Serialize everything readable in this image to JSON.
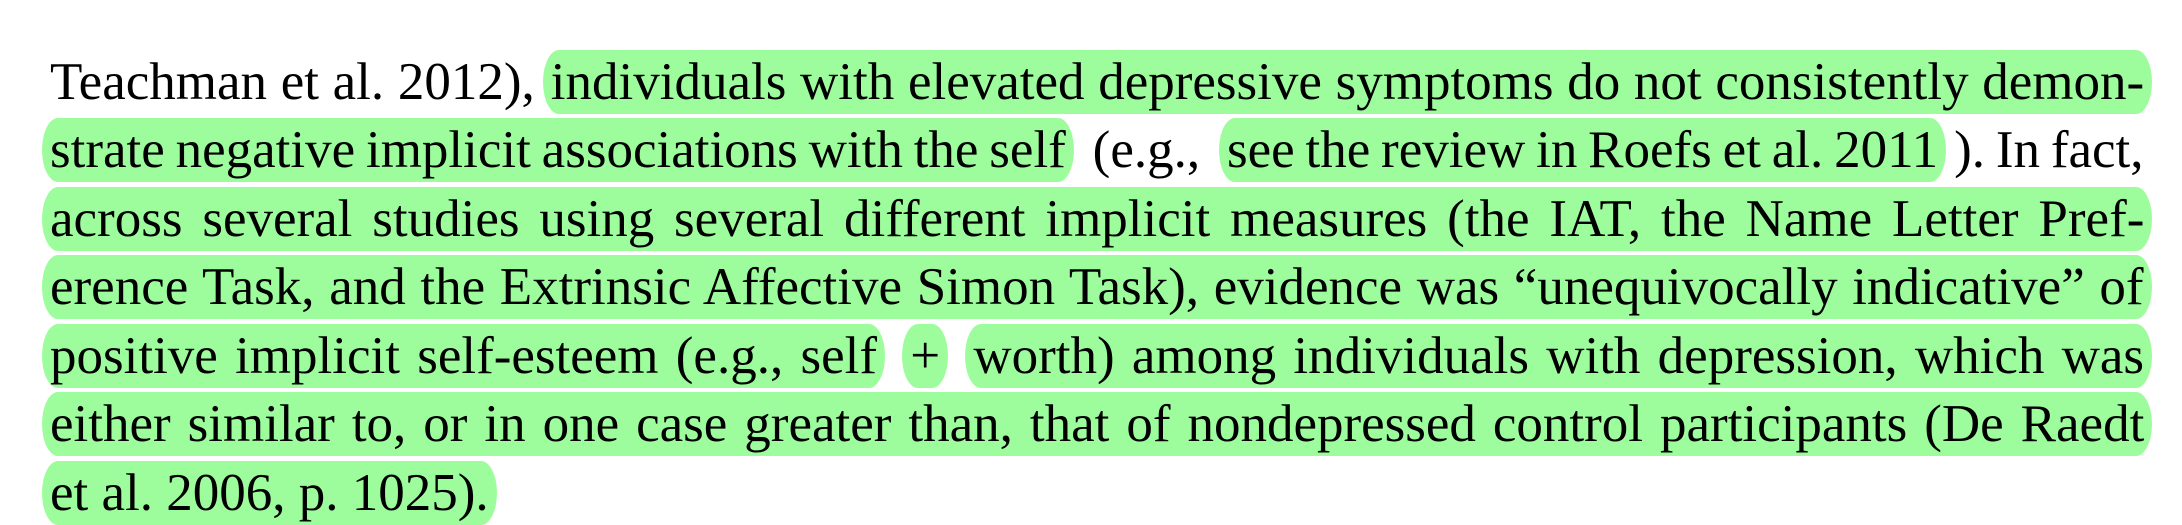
{
  "highlight_color": "#9dfd9d",
  "lines": [
    {
      "segments": [
        {
          "text": "Teachman et al. 2012),",
          "highlighted": false
        },
        {
          "text": "individuals with elevated depressive symptoms do not consistently demon-",
          "highlighted": true
        }
      ]
    },
    {
      "segments": [
        {
          "text": "strate negative implicit associations with the self",
          "highlighted": true
        },
        {
          "text": "(e.g.,",
          "highlighted": false
        },
        {
          "text": "see the review in Roefs et al. 2011",
          "highlighted": true
        },
        {
          "text": "). In fact,",
          "highlighted": false
        }
      ]
    },
    {
      "segments": [
        {
          "text": "across several studies using several different implicit measures (the IAT, the Name Letter Pref-",
          "highlighted": true
        }
      ]
    },
    {
      "segments": [
        {
          "text": "erence Task, and the Extrinsic Affective Simon Task), evidence was “unequivocally indicative” of",
          "highlighted": true
        }
      ]
    },
    {
      "segments": [
        {
          "text": "positive implicit self-esteem (e.g., self",
          "highlighted": true
        },
        {
          "text": "+",
          "highlighted": true
        },
        {
          "text": "worth) among individuals with depression, which was",
          "highlighted": true
        }
      ]
    },
    {
      "segments": [
        {
          "text": "either similar to, or in one case greater than, that of nondepressed control participants (De Raedt",
          "highlighted": true
        }
      ]
    },
    {
      "segments": [
        {
          "text": "et al. 2006, p. 1025).",
          "highlighted": true
        }
      ]
    }
  ]
}
